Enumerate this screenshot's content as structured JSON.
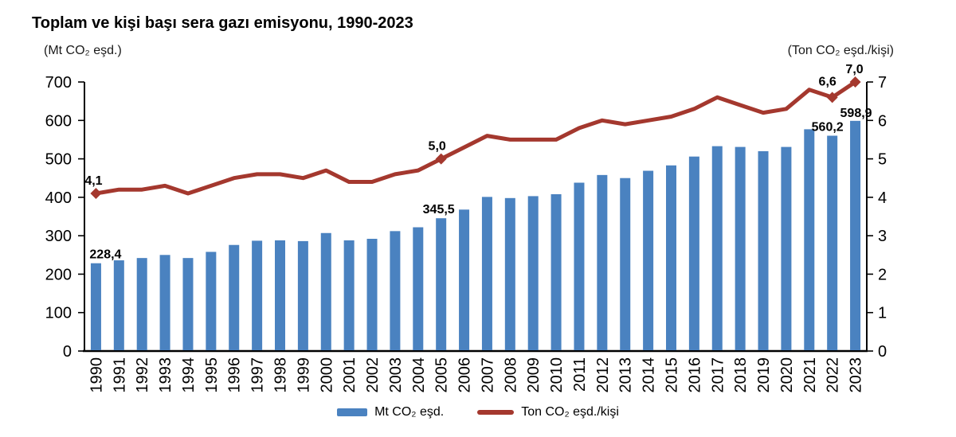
{
  "title": "Toplam ve kişi başı sera gazı emisyonu, 1990-2023",
  "axes": {
    "left_unit": "(Mt CO₂ eşd.)",
    "right_unit": "(Ton CO₂ eşd./kişi)"
  },
  "colors": {
    "bar": "#4a82c0",
    "line": "#a4382e",
    "data_label": "#4d4d4d",
    "axis": "#000000"
  },
  "legend": [
    {
      "label": "Mt CO₂ eşd.",
      "swatch": "bar",
      "color": "#4a82c0"
    },
    {
      "label": "Ton CO₂ eşd./kişi",
      "swatch": "line",
      "color": "#a4382e"
    }
  ],
  "chart_data": {
    "type": "combo-bar-line",
    "title": "Toplam ve kişi başı sera gazı emisyonu, 1990-2023",
    "categories": [
      1990,
      1991,
      1992,
      1993,
      1994,
      1995,
      1996,
      1997,
      1998,
      1999,
      2000,
      2001,
      2002,
      2003,
      2004,
      2005,
      2006,
      2007,
      2008,
      2009,
      2010,
      2011,
      2012,
      2013,
      2014,
      2015,
      2016,
      2017,
      2018,
      2019,
      2020,
      2021,
      2022,
      2023
    ],
    "series": [
      {
        "name": "Mt CO₂ eşd.",
        "type": "bar",
        "axis": "left",
        "color": "#4a82c0",
        "values": [
          228.4,
          236,
          242,
          250,
          242,
          258,
          276,
          287,
          288,
          286,
          307,
          288,
          292,
          312,
          322,
          345.5,
          368,
          401,
          398,
          403,
          408,
          438,
          458,
          450,
          469,
          483,
          506,
          533,
          531,
          520,
          531,
          577,
          560.2,
          598.9
        ],
        "point_labels": {
          "1990": "228,4",
          "2005": "345,5",
          "2022": "560,2",
          "2023": "598,9"
        }
      },
      {
        "name": "Ton CO₂ eşd./kişi",
        "type": "line",
        "axis": "right",
        "color": "#a4382e",
        "values": [
          4.1,
          4.2,
          4.2,
          4.3,
          4.1,
          4.3,
          4.5,
          4.6,
          4.6,
          4.5,
          4.7,
          4.4,
          4.4,
          4.6,
          4.7,
          5.0,
          5.3,
          5.6,
          5.5,
          5.5,
          5.5,
          5.8,
          6.0,
          5.9,
          6.0,
          6.1,
          6.3,
          6.6,
          6.4,
          6.2,
          6.3,
          6.8,
          6.6,
          7.0
        ],
        "point_labels": {
          "1990": "4,1",
          "2005": "5,0",
          "2022": "6,6",
          "2023": "7,0"
        },
        "markers_at": [
          1990,
          2005,
          2022,
          2023
        ]
      }
    ],
    "left_axis": {
      "label": "(Mt CO₂ eşd.)",
      "min": 0,
      "max": 700,
      "step": 100,
      "ticks": [
        "0",
        "100",
        "200",
        "300",
        "400",
        "500",
        "600",
        "700"
      ]
    },
    "right_axis": {
      "label": "(Ton CO₂ eşd./kişi)",
      "min": 0,
      "max": 7,
      "step": 1,
      "ticks": [
        "0",
        "1",
        "2",
        "3",
        "4",
        "5",
        "6",
        "7"
      ]
    },
    "legend_position": "bottom",
    "grid": false
  }
}
